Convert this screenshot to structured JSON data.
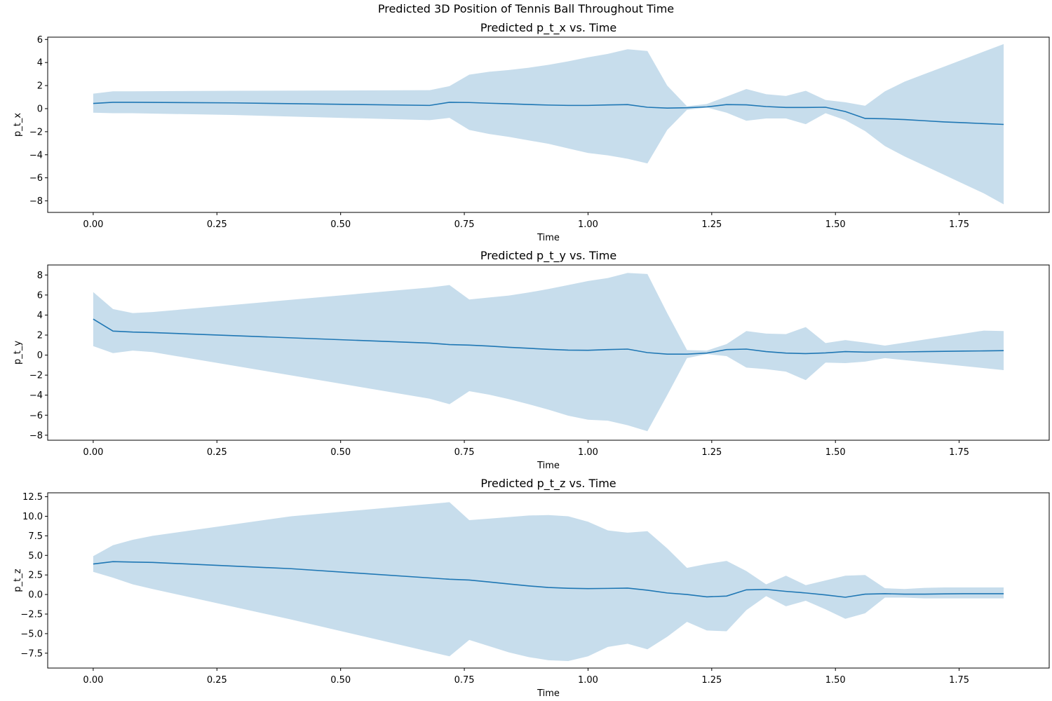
{
  "figure": {
    "suptitle": "Predicted 3D Position of Tennis Ball Throughout Time"
  },
  "colors": {
    "line": "#1f77b4",
    "band": "#1f77b4",
    "band_opacity": 0.25
  },
  "chart_data": [
    {
      "type": "line",
      "title": "Predicted p_t_x vs. Time",
      "xlabel": "Time",
      "ylabel": "p_t_x",
      "xlim": [
        -0.092,
        1.932
      ],
      "ylim": [
        -9.0,
        6.2
      ],
      "xticks": [
        0.0,
        0.25,
        0.5,
        0.75,
        1.0,
        1.25,
        1.5,
        1.75
      ],
      "xtick_labels": [
        "0.00",
        "0.25",
        "0.50",
        "0.75",
        "1.00",
        "1.25",
        "1.50",
        "1.75"
      ],
      "yticks": [
        -8,
        -6,
        -4,
        -2,
        0,
        2,
        4,
        6
      ],
      "ytick_labels": [
        "−8",
        "−6",
        "−4",
        "−2",
        "0",
        "2",
        "4",
        "6"
      ],
      "grid": false,
      "series": [
        {
          "x": [
            0.0,
            0.04,
            0.08,
            0.28,
            0.68,
            0.72,
            0.76,
            0.8,
            0.84,
            0.88,
            0.92,
            0.96,
            1.0,
            1.04,
            1.08,
            1.12,
            1.16,
            1.2,
            1.24,
            1.28,
            1.32,
            1.36,
            1.4,
            1.44,
            1.48,
            1.52,
            1.56,
            1.6,
            1.64,
            1.68,
            1.72,
            1.76,
            1.8,
            1.84
          ],
          "values": [
            0.45,
            0.55,
            0.55,
            0.5,
            0.28,
            0.55,
            0.53,
            0.47,
            0.42,
            0.36,
            0.31,
            0.28,
            0.28,
            0.32,
            0.35,
            0.12,
            0.05,
            0.08,
            0.15,
            0.35,
            0.33,
            0.18,
            0.1,
            0.1,
            0.12,
            -0.25,
            -0.85,
            -0.88,
            -0.95,
            -1.05,
            -1.15,
            -1.22,
            -1.3,
            -1.37
          ],
          "lower": [
            -0.35,
            -0.4,
            -0.4,
            -0.55,
            -1.0,
            -0.8,
            -1.85,
            -2.2,
            -2.45,
            -2.75,
            -3.05,
            -3.45,
            -3.85,
            -4.05,
            -4.35,
            -4.75,
            -1.85,
            -0.1,
            0.1,
            -0.35,
            -1.05,
            -0.85,
            -0.85,
            -1.35,
            -0.4,
            -1.0,
            -1.95,
            -3.25,
            -4.15,
            -4.95,
            -5.75,
            -6.55,
            -7.35,
            -8.3
          ],
          "upper": [
            1.3,
            1.5,
            1.5,
            1.55,
            1.6,
            1.95,
            2.95,
            3.2,
            3.35,
            3.55,
            3.8,
            4.1,
            4.45,
            4.75,
            5.15,
            5.0,
            2.0,
            0.2,
            0.4,
            1.05,
            1.7,
            1.25,
            1.1,
            1.55,
            0.75,
            0.55,
            0.25,
            1.5,
            2.35,
            3.0,
            3.65,
            4.3,
            4.95,
            5.6
          ]
        }
      ]
    },
    {
      "type": "line",
      "title": "Predicted p_t_y vs. Time",
      "xlabel": "Time",
      "ylabel": "p_t_y",
      "xlim": [
        -0.092,
        1.932
      ],
      "ylim": [
        -8.5,
        9.0
      ],
      "xticks": [
        0.0,
        0.25,
        0.5,
        0.75,
        1.0,
        1.25,
        1.5,
        1.75
      ],
      "xtick_labels": [
        "0.00",
        "0.25",
        "0.50",
        "0.75",
        "1.00",
        "1.25",
        "1.50",
        "1.75"
      ],
      "yticks": [
        -8,
        -6,
        -4,
        -2,
        0,
        2,
        4,
        6,
        8
      ],
      "ytick_labels": [
        "−8",
        "−6",
        "−4",
        "−2",
        "0",
        "2",
        "4",
        "6",
        "8"
      ],
      "grid": false,
      "series": [
        {
          "x": [
            0.0,
            0.04,
            0.08,
            0.12,
            0.68,
            0.72,
            0.76,
            0.8,
            0.84,
            0.88,
            0.92,
            0.96,
            1.0,
            1.04,
            1.08,
            1.12,
            1.16,
            1.2,
            1.24,
            1.28,
            1.32,
            1.36,
            1.4,
            1.44,
            1.48,
            1.52,
            1.56,
            1.6,
            1.64,
            1.68,
            1.72,
            1.76,
            1.8,
            1.84
          ],
          "values": [
            3.6,
            2.4,
            2.3,
            2.25,
            1.2,
            1.05,
            1.0,
            0.9,
            0.78,
            0.68,
            0.58,
            0.5,
            0.48,
            0.55,
            0.6,
            0.25,
            0.1,
            0.1,
            0.2,
            0.55,
            0.6,
            0.35,
            0.2,
            0.15,
            0.22,
            0.35,
            0.3,
            0.3,
            0.32,
            0.35,
            0.38,
            0.4,
            0.42,
            0.45
          ],
          "lower": [
            0.9,
            0.2,
            0.45,
            0.3,
            -4.35,
            -4.9,
            -3.6,
            -3.95,
            -4.4,
            -4.9,
            -5.45,
            -6.05,
            -6.45,
            -6.55,
            -7.0,
            -7.6,
            -4.0,
            -0.3,
            0.1,
            -0.1,
            -1.25,
            -1.4,
            -1.65,
            -2.5,
            -0.75,
            -0.8,
            -0.65,
            -0.3,
            -0.5,
            -0.7,
            -0.9,
            -1.1,
            -1.3,
            -1.5
          ],
          "upper": [
            6.3,
            4.6,
            4.2,
            4.3,
            6.75,
            7.0,
            5.55,
            5.75,
            5.95,
            6.25,
            6.6,
            7.0,
            7.4,
            7.7,
            8.2,
            8.1,
            4.2,
            0.5,
            0.45,
            1.1,
            2.4,
            2.15,
            2.1,
            2.8,
            1.2,
            1.5,
            1.25,
            0.95,
            1.25,
            1.55,
            1.85,
            2.15,
            2.45,
            2.4
          ]
        }
      ]
    },
    {
      "type": "line",
      "title": "Predicted p_t_z vs. Time",
      "xlabel": "Time",
      "ylabel": "p_t_z",
      "xlim": [
        -0.092,
        1.932
      ],
      "ylim": [
        -9.4,
        13.0
      ],
      "xticks": [
        0.0,
        0.25,
        0.5,
        0.75,
        1.0,
        1.25,
        1.5,
        1.75
      ],
      "xtick_labels": [
        "0.00",
        "0.25",
        "0.50",
        "0.75",
        "1.00",
        "1.25",
        "1.50",
        "1.75"
      ],
      "yticks": [
        -7.5,
        -5.0,
        -2.5,
        0.0,
        2.5,
        5.0,
        7.5,
        10.0,
        12.5
      ],
      "ytick_labels": [
        "−7.5",
        "−5.0",
        "−2.5",
        "0.0",
        "2.5",
        "5.0",
        "7.5",
        "10.0",
        "12.5"
      ],
      "grid": false,
      "series": [
        {
          "x": [
            0.0,
            0.04,
            0.08,
            0.12,
            0.4,
            0.72,
            0.76,
            0.8,
            0.84,
            0.88,
            0.92,
            0.96,
            1.0,
            1.04,
            1.08,
            1.12,
            1.16,
            1.2,
            1.24,
            1.28,
            1.32,
            1.36,
            1.4,
            1.44,
            1.48,
            1.52,
            1.56,
            1.6,
            1.64,
            1.68,
            1.72,
            1.76,
            1.8,
            1.84
          ],
          "values": [
            3.9,
            4.2,
            4.15,
            4.1,
            3.3,
            1.95,
            1.85,
            1.6,
            1.35,
            1.1,
            0.9,
            0.8,
            0.75,
            0.78,
            0.82,
            0.55,
            0.2,
            0.0,
            -0.3,
            -0.2,
            0.6,
            0.65,
            0.4,
            0.2,
            -0.05,
            -0.35,
            0.05,
            0.1,
            0.05,
            0.05,
            0.08,
            0.1,
            0.1,
            0.1
          ],
          "lower": [
            2.9,
            2.15,
            1.3,
            0.7,
            -3.2,
            -7.9,
            -5.8,
            -6.6,
            -7.4,
            -8.0,
            -8.4,
            -8.5,
            -7.9,
            -6.7,
            -6.3,
            -7.0,
            -5.4,
            -3.5,
            -4.6,
            -4.7,
            -2.0,
            -0.2,
            -1.5,
            -0.8,
            -1.9,
            -3.1,
            -2.4,
            -0.4,
            -0.4,
            -0.5,
            -0.5,
            -0.5,
            -0.5,
            -0.5
          ],
          "upper": [
            4.9,
            6.3,
            7.0,
            7.5,
            10.0,
            11.8,
            9.5,
            9.7,
            9.9,
            10.1,
            10.15,
            10.0,
            9.3,
            8.2,
            7.9,
            8.1,
            5.9,
            3.4,
            3.9,
            4.3,
            3.0,
            1.3,
            2.4,
            1.2,
            1.8,
            2.4,
            2.5,
            0.8,
            0.7,
            0.85,
            0.9,
            0.9,
            0.9,
            0.9
          ]
        }
      ]
    }
  ]
}
